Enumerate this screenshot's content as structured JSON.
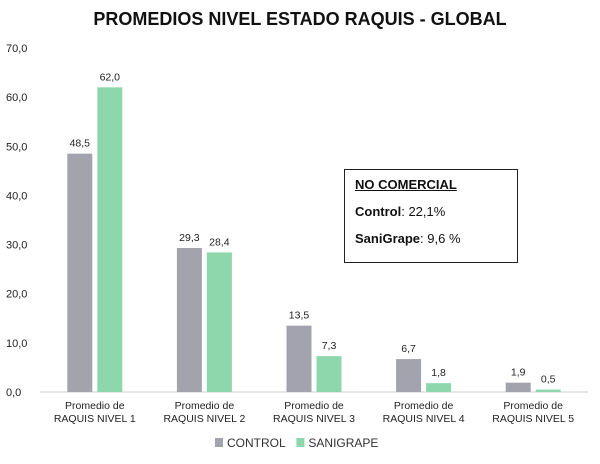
{
  "chart_data": {
    "type": "bar",
    "title": "PROMEDIOS NIVEL ESTADO RAQUIS - GLOBAL",
    "categories": [
      [
        "Promedio de",
        "RAQUIS NIVEL 1"
      ],
      [
        "Promedio de",
        "RAQUIS NIVEL 2"
      ],
      [
        "Promedio de",
        "RAQUIS NIVEL 3"
      ],
      [
        "Promedio de",
        "RAQUIS NIVEL 4"
      ],
      [
        "Promedio de",
        "RAQUIS NIVEL 5"
      ]
    ],
    "series": [
      {
        "name": "CONTROL",
        "values": [
          48.5,
          29.3,
          13.5,
          6.7,
          1.9
        ],
        "labels": [
          "48,5",
          "29,3",
          "13,5",
          "6,7",
          "1,9"
        ],
        "color": "#a3a3ae"
      },
      {
        "name": "SANIGRAPE",
        "values": [
          62.0,
          28.4,
          7.3,
          1.8,
          0.5
        ],
        "labels": [
          "62,0",
          "28,4",
          "7,3",
          "1,8",
          "0,5"
        ],
        "color": "#8ed7ad"
      }
    ],
    "ylim": [
      0,
      70
    ],
    "yticks": [
      0,
      10,
      20,
      30,
      40,
      50,
      60,
      70
    ],
    "ytick_labels": [
      "0,0",
      "10,0",
      "20,0",
      "30,0",
      "40,0",
      "50,0",
      "60,0",
      "70,0"
    ],
    "grid": false,
    "legend": "bottom"
  },
  "note": {
    "title": "NO COMERCIAL",
    "control_label": "Control",
    "control_value": ": 22,1%",
    "sanigrape_label": "SaniGrape",
    "sanigrape_value": ": 9,6 %"
  }
}
